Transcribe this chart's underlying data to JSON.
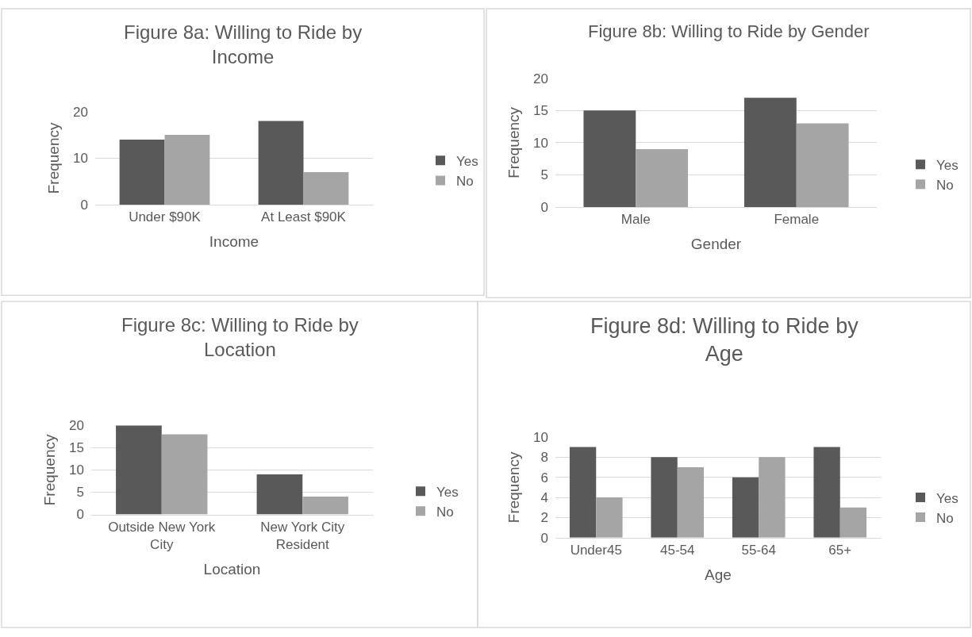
{
  "chart_data": [
    {
      "type": "bar",
      "title": "Figure 8a: Willing to Ride by Income",
      "xlabel": "Income",
      "ylabel": "Frequency",
      "categories": [
        "Under $90K",
        "At Least $90K"
      ],
      "series": [
        {
          "name": "Yes",
          "color": "#595959",
          "values": [
            14,
            18
          ]
        },
        {
          "name": "No",
          "color": "#a5a5a5",
          "values": [
            15,
            7
          ]
        }
      ],
      "ylim": [
        0,
        20
      ],
      "yticks": [
        0,
        10,
        20
      ],
      "grid": "y",
      "legend": "right"
    },
    {
      "type": "bar",
      "title": "Figure 8b: Willing to Ride by Gender",
      "xlabel": "Gender",
      "ylabel": "Frequency",
      "categories": [
        "Male",
        "Female"
      ],
      "series": [
        {
          "name": "Yes",
          "color": "#595959",
          "values": [
            15,
            17
          ]
        },
        {
          "name": "No",
          "color": "#a5a5a5",
          "values": [
            9,
            13
          ]
        }
      ],
      "ylim": [
        0,
        20
      ],
      "yticks": [
        0,
        5,
        10,
        15,
        20
      ],
      "grid": "y",
      "legend": "right"
    },
    {
      "type": "bar",
      "title": "Figure 8c: Willing to Ride by Location",
      "xlabel": "Location",
      "ylabel": "Frequency",
      "categories": [
        "Outside New York City",
        "New York City Resident"
      ],
      "series": [
        {
          "name": "Yes",
          "color": "#595959",
          "values": [
            20,
            9
          ]
        },
        {
          "name": "No",
          "color": "#a5a5a5",
          "values": [
            18,
            4
          ]
        }
      ],
      "ylim": [
        0,
        20
      ],
      "yticks": [
        0,
        5,
        10,
        15,
        20
      ],
      "grid": "y",
      "legend": "right"
    },
    {
      "type": "bar",
      "title": "Figure 8d: Willing to Ride by Age",
      "xlabel": "Age",
      "ylabel": "Frequency",
      "categories": [
        "Under45",
        "45-54",
        "55-64",
        "65+"
      ],
      "series": [
        {
          "name": "Yes",
          "color": "#595959",
          "values": [
            9,
            8,
            6,
            9
          ]
        },
        {
          "name": "No",
          "color": "#a5a5a5",
          "values": [
            4,
            7,
            8,
            3
          ]
        }
      ],
      "ylim": [
        0,
        10
      ],
      "yticks": [
        0,
        2,
        4,
        6,
        8,
        10
      ],
      "grid": "y",
      "legend": "right"
    }
  ]
}
